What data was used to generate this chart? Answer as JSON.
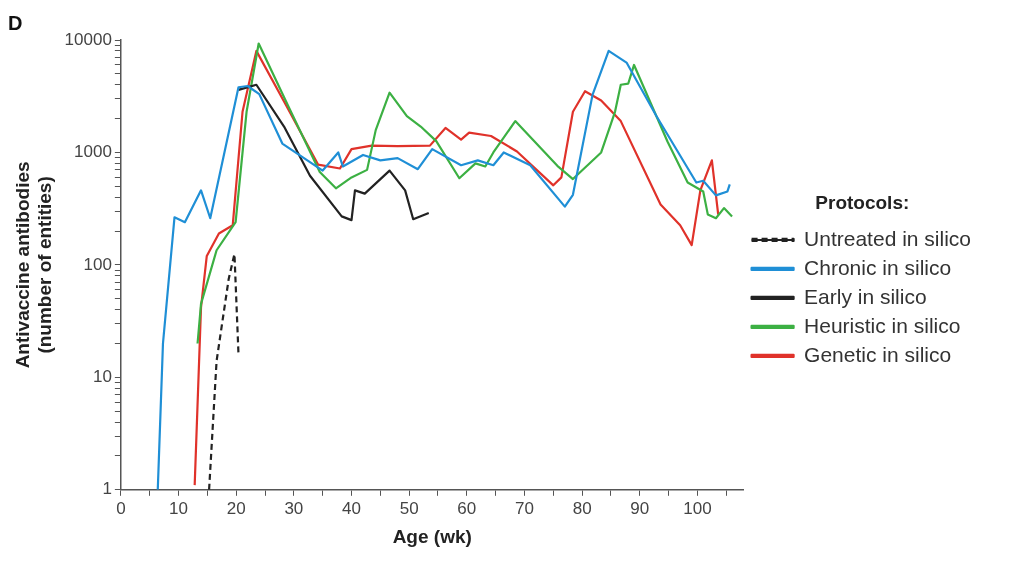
{
  "chart_data": {
    "type": "line",
    "title": "D",
    "xlabel": "Age (wk)",
    "ylabel": "Antivaccine antibodies\n(number of entities)",
    "legend_title": "Protocols:",
    "legend": "right",
    "log": "y",
    "grid": false,
    "marker": "none",
    "xlim": [
      0,
      108
    ],
    "xticks": [
      0,
      {
        "value": 5,
        "label": null
      },
      10,
      {
        "value": 15,
        "label": null
      },
      20,
      {
        "value": 25,
        "label": null
      },
      30,
      {
        "value": 35,
        "label": null
      },
      40,
      {
        "value": 45,
        "label": null
      },
      50,
      {
        "value": 55,
        "label": null
      },
      60,
      {
        "value": 65,
        "label": null
      },
      70,
      {
        "value": 75,
        "label": null
      },
      80,
      {
        "value": 85,
        "label": null
      },
      90,
      {
        "value": 95,
        "label": null
      },
      100,
      {
        "value": 105,
        "label": null
      }
    ],
    "ylim": [
      1,
      10000
    ],
    "yticks": [
      1,
      {
        "value": 2,
        "label": null
      },
      {
        "value": 3,
        "label": null
      },
      {
        "value": 4,
        "label": null
      },
      {
        "value": 5,
        "label": null
      },
      {
        "value": 6,
        "label": null
      },
      {
        "value": 7,
        "label": null
      },
      {
        "value": 8,
        "label": null
      },
      {
        "value": 9,
        "label": null
      },
      10,
      {
        "value": 20,
        "label": null
      },
      {
        "value": 30,
        "label": null
      },
      {
        "value": 40,
        "label": null
      },
      {
        "value": 50,
        "label": null
      },
      {
        "value": 60,
        "label": null
      },
      {
        "value": 70,
        "label": null
      },
      {
        "value": 80,
        "label": null
      },
      {
        "value": 90,
        "label": null
      },
      100,
      {
        "value": 200,
        "label": null
      },
      {
        "value": 300,
        "label": null
      },
      {
        "value": 400,
        "label": null
      },
      {
        "value": 500,
        "label": null
      },
      {
        "value": 600,
        "label": null
      },
      {
        "value": 700,
        "label": null
      },
      {
        "value": 800,
        "label": null
      },
      {
        "value": 900,
        "label": null
      },
      1000,
      {
        "value": 2000,
        "label": null
      },
      {
        "value": 3000,
        "label": null
      },
      {
        "value": 4000,
        "label": null
      },
      {
        "value": 5000,
        "label": null
      },
      {
        "value": 6000,
        "label": null
      },
      {
        "value": 7000,
        "label": null
      },
      {
        "value": 8000,
        "label": null
      },
      {
        "value": 9000,
        "label": null
      },
      10000
    ],
    "series": [
      {
        "name": "Untreated in silico",
        "color": "#222222",
        "line_style": "dashed",
        "x": [
          15.3,
          16.6,
          18.7,
          19.7,
          20.4
        ],
        "values": [
          1,
          14,
          75,
          125,
          16
        ]
      },
      {
        "name": "Chronic in silico",
        "color": "#1f8fd6",
        "line_style": "solid",
        "x": [
          6.4,
          7.3,
          9.3,
          11.1,
          13.9,
          15.5,
          20.4,
          22,
          24,
          28,
          35,
          37.7,
          38.5,
          42,
          45,
          48,
          51.5,
          54,
          59,
          61.9,
          64.6,
          66.4,
          71,
          77,
          78.4,
          81.8,
          84.6,
          87.7,
          92.9,
          99.8,
          101,
          103.2,
          105.2,
          105.6
        ],
        "values": [
          1,
          20,
          265,
          240,
          460,
          260,
          3800,
          3900,
          3300,
          1200,
          690,
          1000,
          750,
          950,
          850,
          890,
          710,
          1070,
          770,
          850,
          770,
          1000,
          770,
          330,
          420,
          3250,
          8000,
          6300,
          2100,
          540,
          560,
          415,
          450,
          520
        ]
      },
      {
        "name": "Early in silico",
        "color": "#222222",
        "line_style": "solid",
        "x": [
          20.4,
          23.5,
          28.3,
          32.8,
          38.3,
          40,
          40.6,
          42.3,
          46.6,
          49.3,
          50.7,
          53.4
        ],
        "values": [
          3600,
          4000,
          1700,
          620,
          270,
          250,
          460,
          430,
          690,
          460,
          255,
          290
        ]
      },
      {
        "name": "Heuristic in silico",
        "color": "#3cb043",
        "line_style": "solid",
        "x": [
          13.3,
          13.9,
          16.6,
          19.9,
          21.8,
          23.9,
          29,
          34.5,
          37.3,
          40,
          42.7,
          44.2,
          46.6,
          49.6,
          52,
          54.7,
          58.7,
          61.5,
          63.2,
          64.6,
          68.4,
          75.7,
          78.4,
          83.3,
          85.7,
          86.7,
          88,
          89,
          94.8,
          98.3,
          101,
          101.8,
          103.2,
          104.6,
          106
        ],
        "values": [
          20,
          45,
          135,
          240,
          2300,
          9300,
          2600,
          670,
          480,
          600,
          700,
          1580,
          3400,
          2100,
          1700,
          1260,
          590,
          800,
          750,
          1000,
          1900,
          760,
          580,
          1000,
          2300,
          4000,
          4100,
          6000,
          1250,
          540,
          450,
          280,
          260,
          320,
          270
        ]
      },
      {
        "name": "Genetic in silico",
        "color": "#e0322a",
        "line_style": "solid",
        "x": [
          12.8,
          13.9,
          14.9,
          17,
          19.4,
          21.1,
          23.5,
          28.7,
          34.2,
          38,
          40,
          43.5,
          48,
          53.6,
          56.3,
          59,
          60.4,
          64.2,
          68.7,
          75,
          76.4,
          78.4,
          80.5,
          83.3,
          86.7,
          93.6,
          97,
          99,
          100.5,
          102.5,
          103.6
        ],
        "values": [
          1.1,
          42,
          120,
          190,
          225,
          2300,
          8000,
          2600,
          780,
          720,
          1070,
          1150,
          1140,
          1150,
          1650,
          1300,
          1500,
          1400,
          1020,
          510,
          600,
          2300,
          3500,
          2900,
          1900,
          345,
          225,
          150,
          460,
          850,
          280
        ]
      }
    ]
  }
}
